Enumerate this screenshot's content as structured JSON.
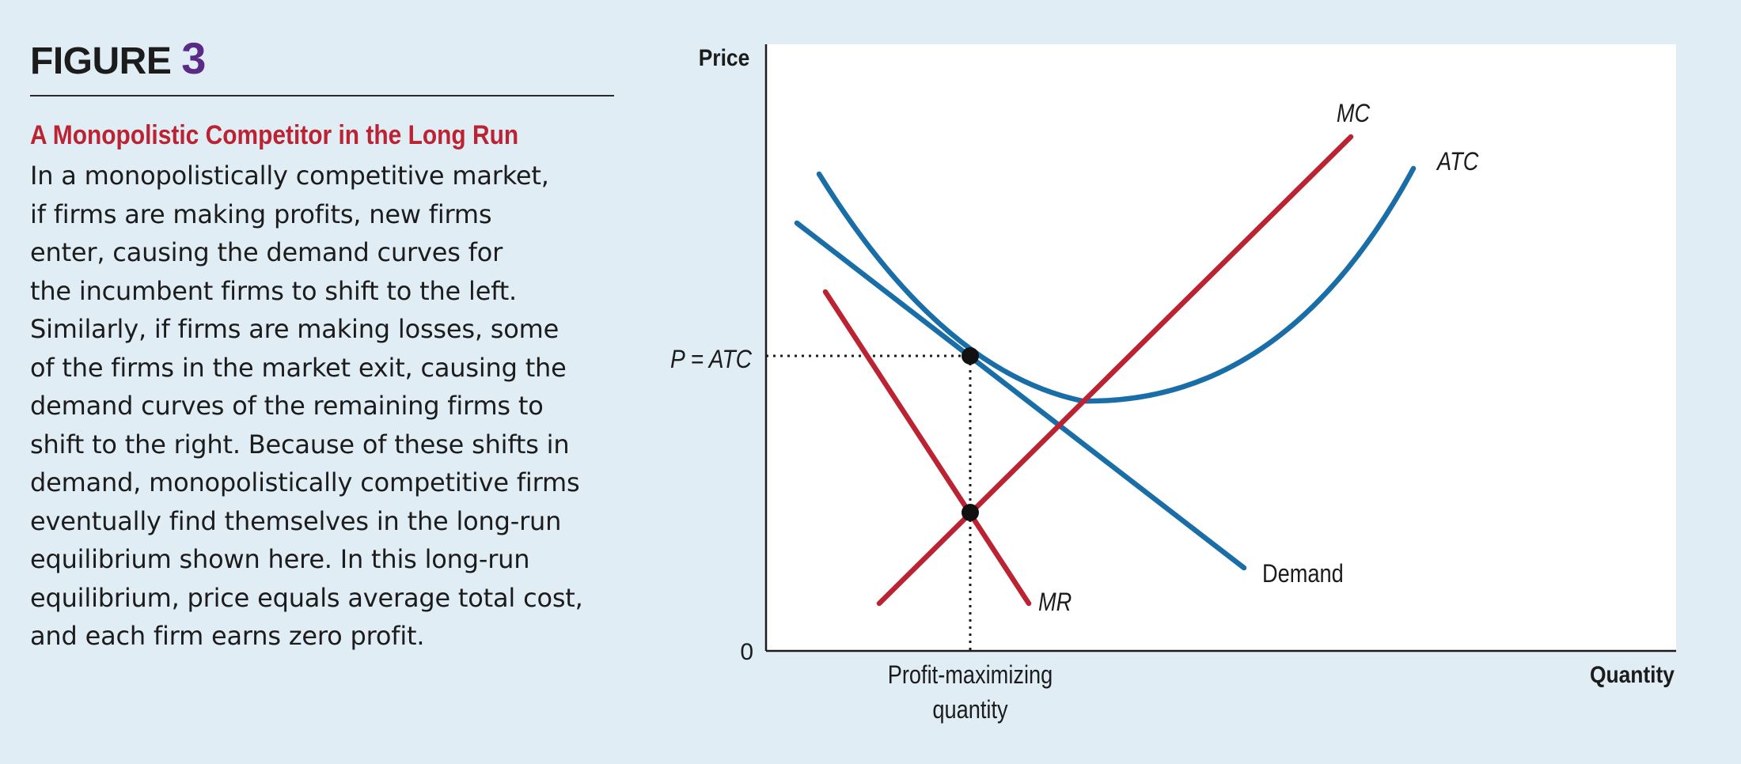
{
  "figure": {
    "label": "FIGURE",
    "number": "3"
  },
  "caption": {
    "title": "A Monopolistic Competitor in the Long Run",
    "body": "In a monopolistically competitive market,\nif firms are making profits, new firms\nenter, causing the demand curves for\nthe incumbent firms to shift to the left.\nSimilarly, if firms are making losses, some\nof the firms in the market exit, causing the\ndemand curves of the remaining firms to\nshift to the right. Because of these shifts in\ndemand, monopolistically competitive firms\neventually find themselves in the long-run\nequilibrium shown here. In this long-run\nequilibrium, price equals average total cost,\nand each firm earns zero profit."
  },
  "diagram": {
    "y_axis_label": "Price",
    "x_axis_label": "Quantity",
    "origin_label": "0",
    "price_label": "P = ATC",
    "quantity_label_line1": "Profit-maximizing",
    "quantity_label_line2": "quantity",
    "curves": {
      "mc": "MC",
      "atc": "ATC",
      "demand": "Demand",
      "mr": "MR"
    },
    "colors": {
      "blue_curves": "#1a6ea8",
      "red_curves": "#bb2232",
      "plot_background": "#ffffff",
      "page_background": "#e0edf5"
    }
  }
}
